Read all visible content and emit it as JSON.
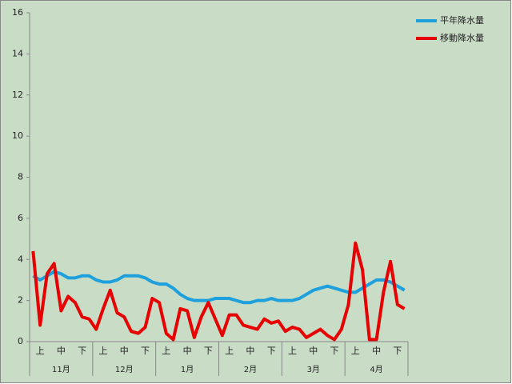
{
  "chart_data": {
    "type": "line",
    "categories": [
      null,
      "上",
      null,
      null,
      "中",
      null,
      null,
      "下",
      null,
      null,
      "上",
      null,
      null,
      "中",
      null,
      null,
      "下",
      null,
      null,
      "上",
      null,
      null,
      "中",
      null,
      null,
      "下",
      null,
      null,
      "上",
      null,
      null,
      "中",
      null,
      null,
      "下",
      null,
      null,
      "上",
      null,
      null,
      "中",
      null,
      null,
      "下",
      null,
      null,
      "上",
      null,
      null,
      "中",
      null,
      null,
      "下",
      null
    ],
    "x_groups": [
      "11月",
      "12月",
      "1月",
      "2月",
      "3月",
      "4月"
    ],
    "series": [
      {
        "name": "平年降水量",
        "color": "#1ea0dc",
        "values": [
          3.2,
          3.0,
          3.2,
          3.4,
          3.3,
          3.1,
          3.1,
          3.2,
          3.2,
          3.0,
          2.9,
          2.9,
          3.0,
          3.2,
          3.2,
          3.2,
          3.1,
          2.9,
          2.8,
          2.8,
          2.6,
          2.3,
          2.1,
          2.0,
          2.0,
          2.0,
          2.1,
          2.1,
          2.1,
          2.0,
          1.9,
          1.9,
          2.0,
          2.0,
          2.1,
          2.0,
          2.0,
          2.0,
          2.1,
          2.3,
          2.5,
          2.6,
          2.7,
          2.6,
          2.5,
          2.4,
          2.4,
          2.6,
          2.8,
          3.0,
          3.0,
          2.9,
          2.7,
          2.5
        ]
      },
      {
        "name": "移動降水量",
        "color": "#e60000",
        "values": [
          4.4,
          0.8,
          3.3,
          3.8,
          1.5,
          2.2,
          1.9,
          1.2,
          1.1,
          0.6,
          1.6,
          2.5,
          1.4,
          1.2,
          0.5,
          0.4,
          0.7,
          2.1,
          1.9,
          0.4,
          0.1,
          1.6,
          1.5,
          0.2,
          1.2,
          1.9,
          1.1,
          0.3,
          1.3,
          1.3,
          0.8,
          0.7,
          0.6,
          1.1,
          0.9,
          1.0,
          0.5,
          0.7,
          0.6,
          0.2,
          0.4,
          0.6,
          0.3,
          0.1,
          0.6,
          1.8,
          4.8,
          3.5,
          0.1,
          0.1,
          2.4,
          3.9,
          1.8,
          1.6
        ]
      }
    ],
    "ylim": [
      0,
      16
    ],
    "yticks": [
      0,
      2,
      4,
      6,
      8,
      10,
      12,
      14,
      16
    ],
    "legend": "right"
  }
}
